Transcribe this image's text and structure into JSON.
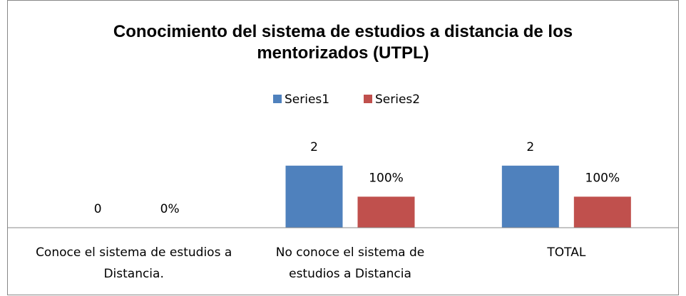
{
  "chart_data": {
    "type": "bar",
    "title": "Conocimiento del sistema de estudios a distancia de los mentorizados (UTPL)",
    "categories": [
      "Conoce el sistema de estudios a Distancia.",
      "No conoce el sistema de estudios a Distancia",
      "TOTAL"
    ],
    "series": [
      {
        "name": "Series1",
        "color": "#4f81bd",
        "values": [
          0,
          2,
          2
        ]
      },
      {
        "name": "Series2",
        "color": "#c0504d",
        "values": [
          0,
          1,
          1
        ],
        "value_labels": [
          "0%",
          "100%",
          "100%"
        ]
      }
    ],
    "ylim": [
      0,
      2.5
    ],
    "legend": "top"
  }
}
